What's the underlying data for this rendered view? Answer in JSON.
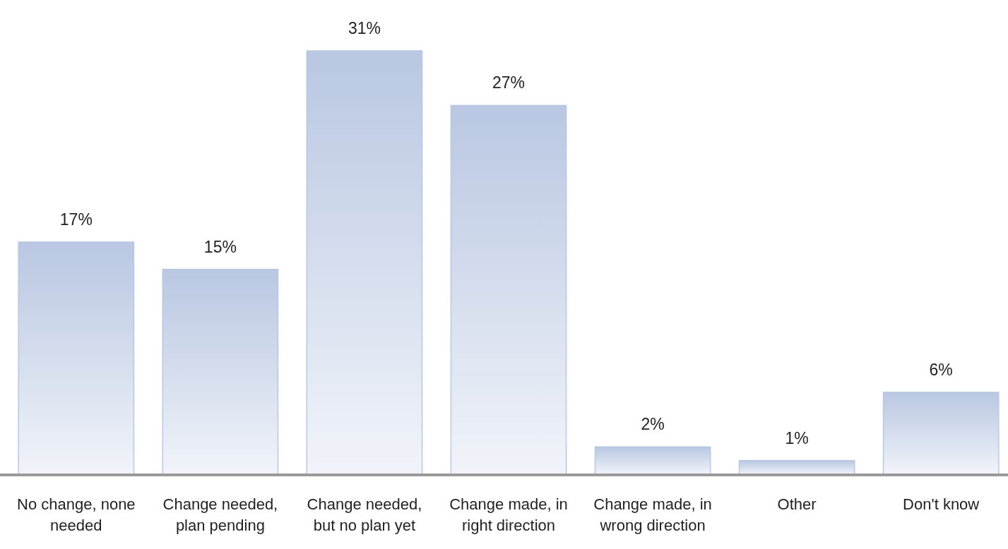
{
  "chart_data": {
    "type": "bar",
    "categories": [
      "No change, none needed",
      "Change needed, plan pending",
      "Change needed, but no plan yet",
      "Change made, in right direction",
      "Change made, in wrong direction",
      "Other",
      "Don't know"
    ],
    "values": [
      17,
      15,
      31,
      27,
      2,
      1,
      6
    ],
    "value_labels": [
      "17%",
      "15%",
      "31%",
      "27%",
      "2%",
      "1%",
      "6%"
    ],
    "color": "#b9c7e2"
  }
}
